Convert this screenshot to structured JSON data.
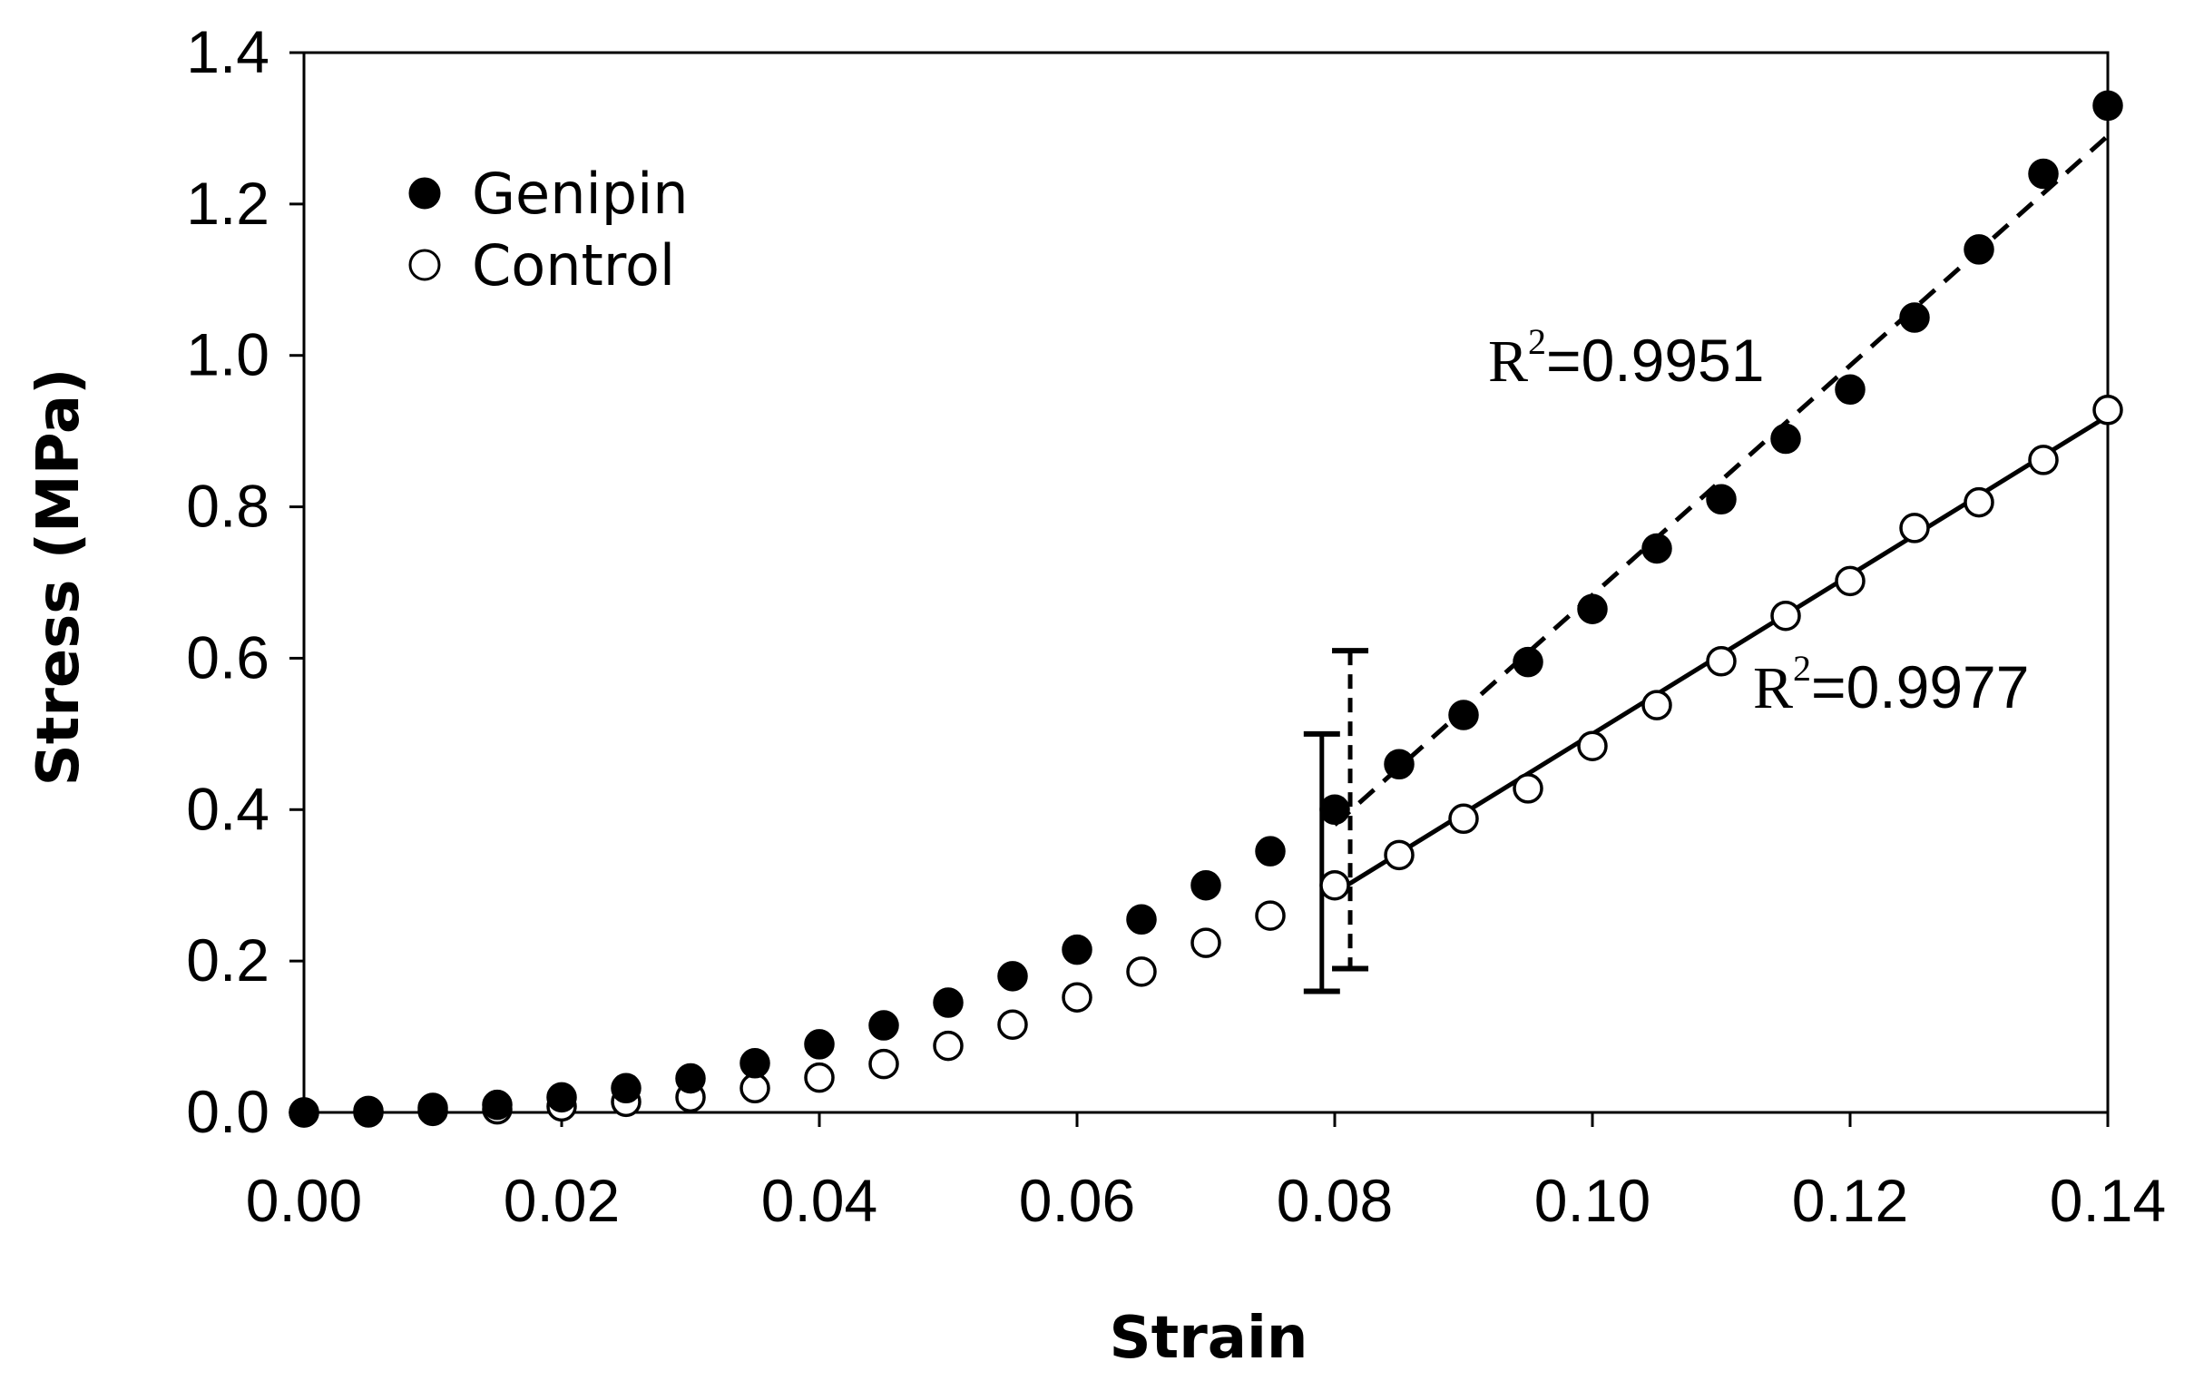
{
  "chart_data": {
    "type": "scatter",
    "title": "",
    "xlabel": "Strain",
    "ylabel": "Stress (MPa)",
    "xlim": [
      0,
      0.14
    ],
    "ylim": [
      0,
      1.4
    ],
    "x_ticks": [
      "0.00",
      "0.02",
      "0.04",
      "0.06",
      "0.08",
      "0.10",
      "0.12",
      "0.14"
    ],
    "y_ticks": [
      "0.0",
      "0.2",
      "0.4",
      "0.6",
      "0.8",
      "1.0",
      "1.2",
      "1.4"
    ],
    "grid": false,
    "legend_position": "top-left",
    "series": [
      {
        "name": "Genipin",
        "marker": "filled-circle",
        "x": [
          0.0,
          0.005,
          0.01,
          0.015,
          0.02,
          0.025,
          0.03,
          0.035,
          0.04,
          0.045,
          0.05,
          0.055,
          0.06,
          0.065,
          0.07,
          0.075,
          0.08,
          0.085,
          0.09,
          0.095,
          0.1,
          0.105,
          0.11,
          0.115,
          0.12,
          0.125,
          0.13,
          0.135,
          0.14
        ],
        "values": [
          0.0,
          0.002,
          0.006,
          0.01,
          0.02,
          0.032,
          0.045,
          0.065,
          0.09,
          0.115,
          0.145,
          0.18,
          0.215,
          0.255,
          0.3,
          0.345,
          0.4,
          0.46,
          0.525,
          0.595,
          0.665,
          0.745,
          0.81,
          0.89,
          0.955,
          1.05,
          1.14,
          1.24,
          1.33
        ]
      },
      {
        "name": "Control",
        "marker": "open-circle",
        "x": [
          0.0,
          0.005,
          0.01,
          0.015,
          0.02,
          0.025,
          0.03,
          0.035,
          0.04,
          0.045,
          0.05,
          0.055,
          0.06,
          0.065,
          0.07,
          0.075,
          0.08,
          0.085,
          0.09,
          0.095,
          0.1,
          0.105,
          0.11,
          0.115,
          0.12,
          0.125,
          0.13,
          0.135,
          0.14
        ],
        "values": [
          0.0,
          0.0,
          0.002,
          0.004,
          0.008,
          0.014,
          0.02,
          0.032,
          0.046,
          0.064,
          0.088,
          0.116,
          0.152,
          0.186,
          0.224,
          0.26,
          0.3,
          0.34,
          0.388,
          0.428,
          0.484,
          0.538,
          0.596,
          0.656,
          0.702,
          0.772,
          0.806,
          0.862,
          0.928
        ]
      }
    ],
    "fits": [
      {
        "series": "Genipin",
        "style": "dashed",
        "x": [
          0.08,
          0.14
        ],
        "values": [
          0.38,
          1.29
        ],
        "label": "R",
        "superscript": "2",
        "value_text": "=0.9951"
      },
      {
        "series": "Control",
        "style": "solid",
        "x": [
          0.08,
          0.14
        ],
        "values": [
          0.29,
          0.92
        ],
        "label": "R",
        "superscript": "2",
        "value_text": "=0.9977"
      }
    ],
    "error_bars": [
      {
        "series": "Control",
        "style": "solid",
        "x": 0.079,
        "low": 0.16,
        "high": 0.5
      },
      {
        "series": "Genipin",
        "style": "dashed",
        "x": 0.0812,
        "low": 0.19,
        "high": 0.61
      }
    ]
  }
}
